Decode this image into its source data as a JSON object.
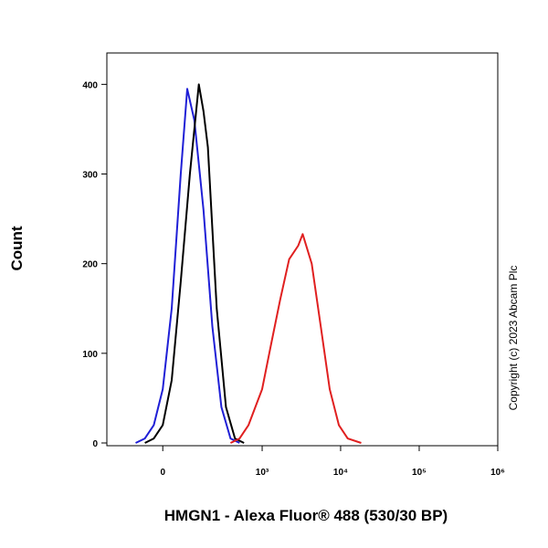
{
  "chart_data": {
    "type": "line",
    "xlabel": "HMGN1 - Alexa Fluor® 488 (530/30 BP)",
    "ylabel": "Count",
    "annotation": "Copyright (c) 2023 Abcam Plc",
    "xscale": "biexponential",
    "xlim": [
      -270,
      1000000
    ],
    "xticks": [
      0,
      {
        "value": 1000,
        "label": "10³"
      },
      {
        "value": 10000,
        "label": "10⁴"
      },
      {
        "value": 100000,
        "label": "10⁵"
      },
      {
        "value": 1000000,
        "label": "10⁶"
      }
    ],
    "ylim": [
      0,
      435
    ],
    "yticks": [
      0,
      100,
      200,
      300,
      400
    ],
    "series": [
      {
        "color": "#1f1fd6",
        "x": [
          -96,
          -60,
          -29,
          0,
          29,
          60,
          85,
          116,
          163,
          220,
          294,
          389,
          511
        ],
        "values": [
          0,
          5,
          20,
          60,
          150,
          300,
          395,
          360,
          260,
          130,
          40,
          5,
          0
        ]
      },
      {
        "color": "#000000",
        "x": [
          -60,
          -29,
          0,
          29,
          60,
          96,
          138,
          163,
          190,
          254,
          339,
          446,
          585
        ],
        "values": [
          0,
          5,
          20,
          70,
          180,
          300,
          400,
          370,
          330,
          150,
          40,
          5,
          0
        ]
      },
      {
        "color": "#e02020",
        "x": [
          389,
          511,
          668,
          1000,
          1300,
          1700,
          2210,
          2880,
          3290,
          4290,
          5590,
          7270,
          9480,
          12300,
          18300
        ],
        "values": [
          0,
          5,
          20,
          60,
          110,
          160,
          205,
          220,
          233,
          200,
          130,
          60,
          20,
          5,
          0
        ]
      }
    ]
  }
}
